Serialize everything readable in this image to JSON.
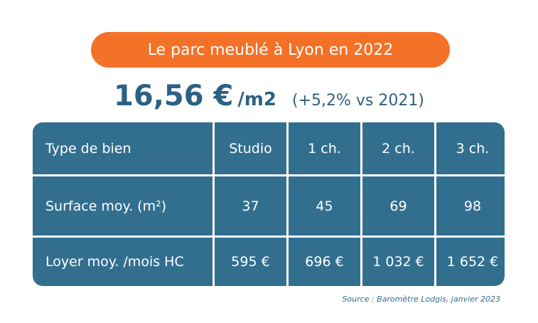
{
  "title": "Le parc meublé à Lyon en 2022",
  "price": {
    "value": "16,56 €",
    "unit": "/m2",
    "change": "(+5,2% vs 2021)"
  },
  "table": {
    "headers": [
      "Type de bien",
      "Studio",
      "1 ch.",
      "2 ch.",
      "3 ch."
    ],
    "rows": [
      {
        "label": "Surface moy. (m²)",
        "values": [
          "37",
          "45",
          "69",
          "98"
        ]
      },
      {
        "label": "Loyer moy. /mois HC",
        "values": [
          "595 €",
          "696 €",
          "1 032 €",
          "1  652 €"
        ]
      }
    ]
  },
  "source": "Source : Baromètre Lodgis, janvier 2023",
  "colors": {
    "accent": "#f47227",
    "table_cell": "#326f8f",
    "price_text": "#2a6184"
  }
}
